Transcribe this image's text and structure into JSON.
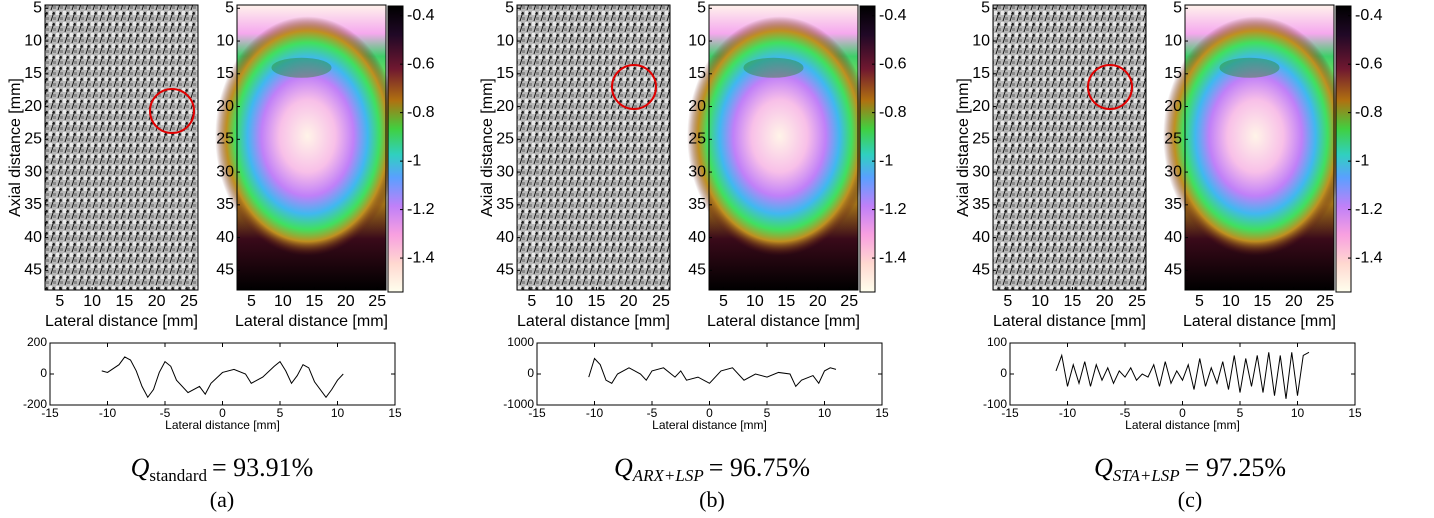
{
  "chart_data": [
    {
      "type": "quiver",
      "ylabel": "Axial distance [mm]",
      "xlabel": "Lateral distance [mm]",
      "xlim": [
        2.7,
        26.4
      ],
      "ylim": [
        48,
        4.5
      ],
      "xticks": [
        5,
        10,
        15,
        20,
        25
      ],
      "yticks": [
        5,
        10,
        15,
        20,
        25,
        30,
        35,
        40,
        45
      ]
    },
    {
      "type": "heatmap",
      "xlabel": "Lateral distance [mm]",
      "xlim": [
        2.7,
        26.4
      ],
      "ylim": [
        48,
        4.5
      ],
      "xticks": [
        5,
        10,
        15,
        20,
        25
      ],
      "yticks": [
        5,
        10,
        15,
        20,
        25,
        30,
        35,
        40,
        45
      ],
      "clim": [
        -1.54,
        -0.36
      ],
      "cticks": [
        -0.4,
        -0.6,
        -0.8,
        -1,
        -1.2,
        -1.4
      ]
    },
    {
      "type": "line",
      "xlabel": "Lateral distance [mm]",
      "color": "#000000",
      "x": [
        -10.5,
        -10,
        -9,
        -8.5,
        -8,
        -7.5,
        -7,
        -6.5,
        -6,
        -5.5,
        -5,
        -4.5,
        -4,
        -3,
        -2,
        -1.5,
        -1,
        0,
        1,
        2,
        2.5,
        3.5,
        4.5,
        5,
        5.5,
        6,
        6.5,
        7,
        7.5,
        8,
        9,
        9.5,
        10,
        10.5
      ],
      "values": [
        20,
        10,
        60,
        110,
        90,
        20,
        -80,
        -150,
        -100,
        10,
        80,
        50,
        -40,
        -120,
        -80,
        -130,
        -60,
        10,
        30,
        0,
        -60,
        -20,
        50,
        80,
        20,
        -60,
        -10,
        60,
        40,
        -50,
        -150,
        -100,
        -40,
        0
      ],
      "xlim": [
        -15,
        15
      ],
      "ylim": [
        -200,
        200
      ],
      "xticks": [
        -15,
        -10,
        -5,
        0,
        5,
        10,
        15
      ],
      "yticks": [
        -200,
        0,
        200
      ]
    },
    {
      "type": "quiver",
      "ylabel": "Axial distance [mm]",
      "xlabel": "Lateral distance [mm]",
      "xlim": [
        2.7,
        26.4
      ],
      "ylim": [
        48,
        4.5
      ],
      "xticks": [
        5,
        10,
        15,
        20,
        25
      ],
      "yticks": [
        5,
        10,
        15,
        20,
        25,
        30,
        35,
        40,
        45
      ]
    },
    {
      "type": "heatmap",
      "xlabel": "Lateral distance [mm]",
      "xlim": [
        2.7,
        26.4
      ],
      "ylim": [
        48,
        4.5
      ],
      "xticks": [
        5,
        10,
        15,
        20,
        25
      ],
      "yticks": [
        5,
        10,
        15,
        20,
        25,
        30,
        35,
        40,
        45
      ],
      "clim": [
        -1.54,
        -0.36
      ],
      "cticks": [
        -0.4,
        -0.6,
        -0.8,
        -1,
        -1.2,
        -1.4
      ]
    },
    {
      "type": "line",
      "xlabel": "Lateral distance [mm]",
      "color": "#000000",
      "x": [
        -10.5,
        -10,
        -9.5,
        -9,
        -8.5,
        -8,
        -7,
        -6,
        -5.5,
        -5,
        -4,
        -3,
        -2.5,
        -2,
        -1,
        0,
        1,
        2,
        3,
        4,
        5,
        6,
        7,
        7.5,
        8,
        9,
        9.5,
        10,
        10.5,
        11
      ],
      "values": [
        -100,
        500,
        300,
        -200,
        -300,
        0,
        200,
        0,
        -200,
        100,
        200,
        -100,
        100,
        -200,
        -100,
        -300,
        100,
        200,
        -200,
        0,
        -100,
        50,
        0,
        -400,
        -200,
        -50,
        -300,
        100,
        200,
        150
      ],
      "xlim": [
        -15,
        15
      ],
      "ylim": [
        -1000,
        1000
      ],
      "xticks": [
        -15,
        -10,
        -5,
        0,
        5,
        10,
        15
      ],
      "yticks": [
        -1000,
        0,
        1000
      ]
    },
    {
      "type": "quiver",
      "ylabel": "Axial distance [mm]",
      "xlabel": "Lateral distance [mm]",
      "xlim": [
        2.7,
        26.4
      ],
      "ylim": [
        48,
        4.5
      ],
      "xticks": [
        5,
        10,
        15,
        20,
        25
      ],
      "yticks": [
        5,
        10,
        15,
        20,
        25,
        30,
        35,
        40,
        45
      ]
    },
    {
      "type": "heatmap",
      "xlabel": "Lateral distance [mm]",
      "xlim": [
        2.7,
        26.4
      ],
      "ylim": [
        48,
        4.5
      ],
      "xticks": [
        5,
        10,
        15,
        20,
        25
      ],
      "yticks": [
        5,
        10,
        15,
        20,
        25,
        30,
        35,
        40,
        45
      ],
      "clim": [
        -1.54,
        -0.36
      ],
      "cticks": [
        -0.4,
        -0.6,
        -0.8,
        -1,
        -1.2,
        -1.4
      ]
    },
    {
      "type": "line",
      "xlabel": "Lateral distance [mm]",
      "color": "#000000",
      "x": [
        -11,
        -10.5,
        -10,
        -9.5,
        -9,
        -8.5,
        -8,
        -7.5,
        -7,
        -6.5,
        -6,
        -5.5,
        -5,
        -4.5,
        -4,
        -3.5,
        -3,
        -2.5,
        -2,
        -1.5,
        -1,
        -0.5,
        0,
        0.5,
        1,
        1.5,
        2,
        2.5,
        3,
        3.5,
        4,
        4.5,
        5,
        5.5,
        6,
        6.5,
        7,
        7.5,
        8,
        8.5,
        9,
        9.5,
        10,
        10.5,
        11
      ],
      "values": [
        10,
        60,
        -40,
        30,
        -30,
        40,
        -40,
        30,
        -20,
        20,
        -30,
        10,
        -10,
        20,
        -20,
        0,
        -10,
        30,
        -40,
        40,
        -30,
        10,
        -20,
        30,
        -50,
        50,
        -40,
        20,
        -30,
        40,
        -50,
        60,
        -60,
        50,
        -40,
        60,
        -60,
        70,
        -70,
        60,
        -80,
        70,
        -70,
        60,
        70
      ],
      "xlim": [
        -15,
        15
      ],
      "ylim": [
        -100,
        100
      ],
      "xticks": [
        -15,
        -10,
        -5,
        0,
        5,
        10,
        15
      ],
      "yticks": [
        -100,
        0,
        100
      ]
    }
  ],
  "captions": [
    {
      "symbol": "Q",
      "subscript": "standard",
      "value": "= 93.91%",
      "label": "(a)"
    },
    {
      "symbol": "Q",
      "subscript": "ARX+LSP",
      "value": "= 96.75%",
      "label": "(b)"
    },
    {
      "symbol": "Q",
      "subscript": "STA+LSP",
      "value": "= 97.25%",
      "label": "(c)"
    }
  ]
}
